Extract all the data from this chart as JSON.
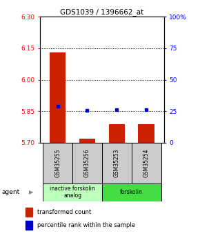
{
  "title": "GDS1039 / 1396662_at",
  "samples": [
    "GSM35255",
    "GSM35256",
    "GSM35253",
    "GSM35254"
  ],
  "bar_values": [
    6.13,
    5.72,
    5.79,
    5.79
  ],
  "bar_bottom": 5.7,
  "blue_dot_values": [
    5.875,
    5.855,
    5.857,
    5.857
  ],
  "ylim": [
    5.7,
    6.3
  ],
  "yticks_left": [
    5.7,
    5.85,
    6.0,
    6.15,
    6.3
  ],
  "yticks_right": [
    0,
    25,
    50,
    75,
    100
  ],
  "right_ylim": [
    0,
    100
  ],
  "groups": [
    {
      "label": "inactive forskolin\nanalog",
      "samples": [
        0,
        1
      ],
      "color": "#bbffbb"
    },
    {
      "label": "forskolin",
      "samples": [
        2,
        3
      ],
      "color": "#44dd44"
    }
  ],
  "bar_color": "#cc2200",
  "dot_color": "#0000cc",
  "agent_label": "agent",
  "legend_bar_label": "transformed count",
  "legend_dot_label": "percentile rank within the sample",
  "sample_box_color": "#cccccc",
  "background_color": "#ffffff",
  "fig_width": 2.9,
  "fig_height": 3.45,
  "dpi": 100
}
